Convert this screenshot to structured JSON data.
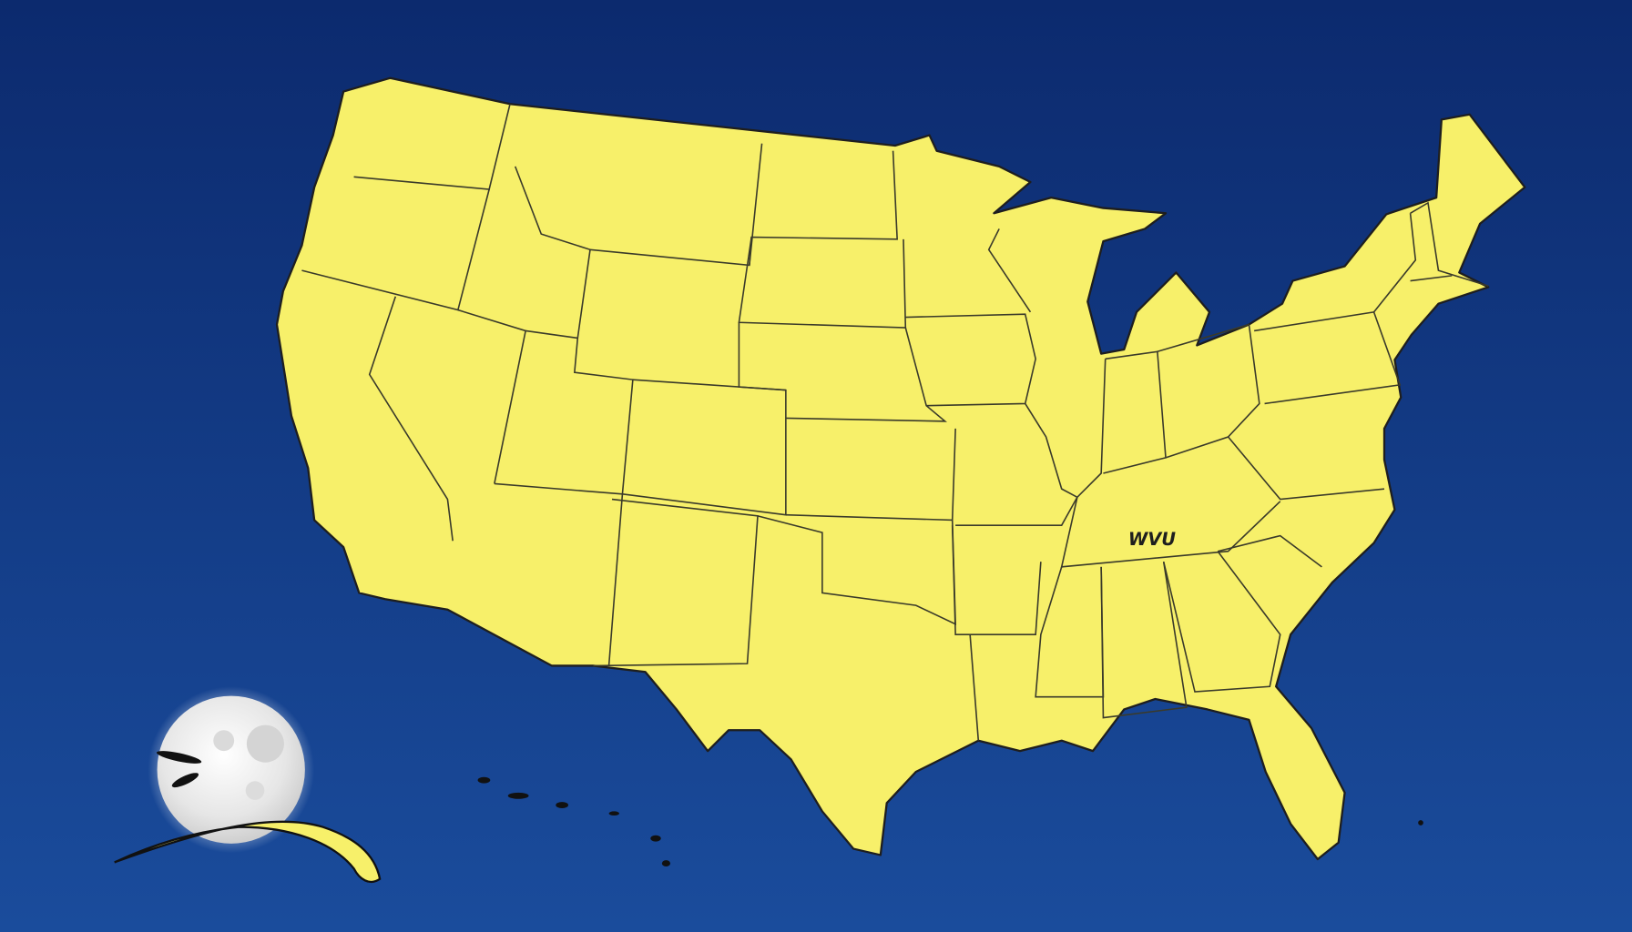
{
  "map": {
    "region_label": "WVU",
    "colors": {
      "ocean_top": "#0c2a6e",
      "ocean_bottom": "#1a4c9c",
      "land": "#f7f06a",
      "border": "#3a3a2a",
      "moon": "#eeeeee"
    },
    "icons": [
      "moon-icon",
      "comet-tail-icon"
    ]
  }
}
